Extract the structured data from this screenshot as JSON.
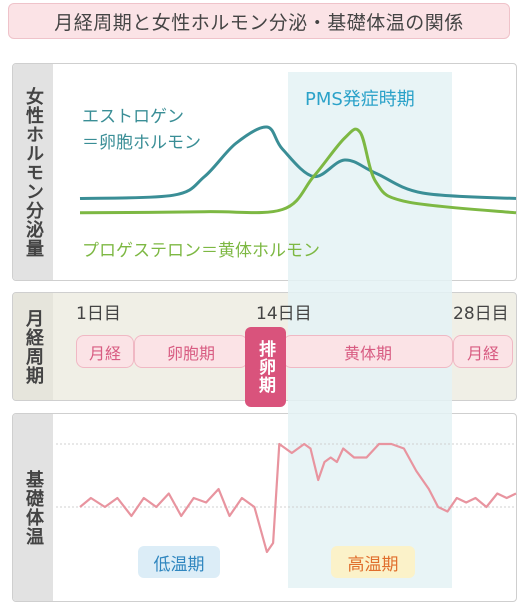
{
  "title": "月経周期と女性ホルモン分泌・基礎体温の関係",
  "hormone_panel": {
    "label": "女性ホルモン分泌量",
    "estrogen_label_1": "エストロゲン",
    "estrogen_label_2": "＝卵胞ホルモン",
    "progesterone_label": "プロゲステロン＝黄体ホルモン",
    "pms_label": "PMS発症時期"
  },
  "cycle_panel": {
    "label": "月経周期",
    "days": [
      "1日目",
      "14日目",
      "28日目"
    ],
    "phases": [
      "月経",
      "卵胞期",
      "黄体期",
      "月経"
    ],
    "ovulation": "排卵期"
  },
  "temp_panel": {
    "label": "基礎体温",
    "low_label": "低温期",
    "high_label": "高温期"
  },
  "colors": {
    "estrogen": "#3a8e96",
    "progesterone": "#7db843",
    "temperature": "#e8949f",
    "pms_band": "#e4f2f5",
    "accent_pink": "#d9537c",
    "pms_text": "#2ba2c9"
  },
  "chart_data": [
    {
      "type": "line",
      "series": [
        {
          "name": "エストロゲン＝卵胞ホルモン",
          "x": [
            0,
            6,
            8,
            10,
            12,
            13,
            15,
            17,
            19,
            22,
            28
          ],
          "values": [
            0.15,
            0.18,
            0.35,
            0.65,
            0.8,
            0.6,
            0.35,
            0.5,
            0.38,
            0.2,
            0.15
          ]
        },
        {
          "name": "プロゲステロン＝黄体ホルモン",
          "x": [
            0,
            8,
            13,
            15,
            17,
            18,
            19,
            21,
            28
          ],
          "values": [
            0.02,
            0.03,
            0.05,
            0.35,
            0.7,
            0.75,
            0.3,
            0.12,
            0.02
          ]
        }
      ]
    },
    {
      "type": "line",
      "series": [
        {
          "name": "",
          "x": [
            0,
            0.7,
            1.6,
            2.4,
            3.3,
            4.1,
            4.9,
            5.7,
            6.5,
            7.3,
            8.1,
            8.9,
            9.6,
            10.4,
            11.2,
            12.0,
            12.4,
            12.8,
            13.6,
            14.4,
            14.8,
            15.3,
            15.7,
            16.1,
            16.5,
            16.9,
            17.6,
            18.4,
            19.2,
            20.0,
            20.8,
            21.6,
            22.4,
            23.0,
            23.6,
            24.2,
            24.8,
            25.4,
            26.1,
            26.8,
            27.4,
            28.0
          ],
          "values": [
            36.2,
            36.3,
            36.2,
            36.3,
            36.1,
            36.3,
            36.2,
            36.35,
            36.1,
            36.3,
            36.25,
            36.4,
            36.1,
            36.3,
            36.2,
            35.7,
            35.8,
            36.9,
            36.8,
            36.9,
            36.85,
            36.5,
            36.7,
            36.75,
            36.7,
            36.85,
            36.75,
            36.75,
            36.9,
            36.9,
            36.85,
            36.6,
            36.4,
            36.2,
            36.15,
            36.3,
            36.25,
            36.3,
            36.2,
            36.35,
            36.3,
            36.35
          ]
        }
      ]
    }
  ]
}
